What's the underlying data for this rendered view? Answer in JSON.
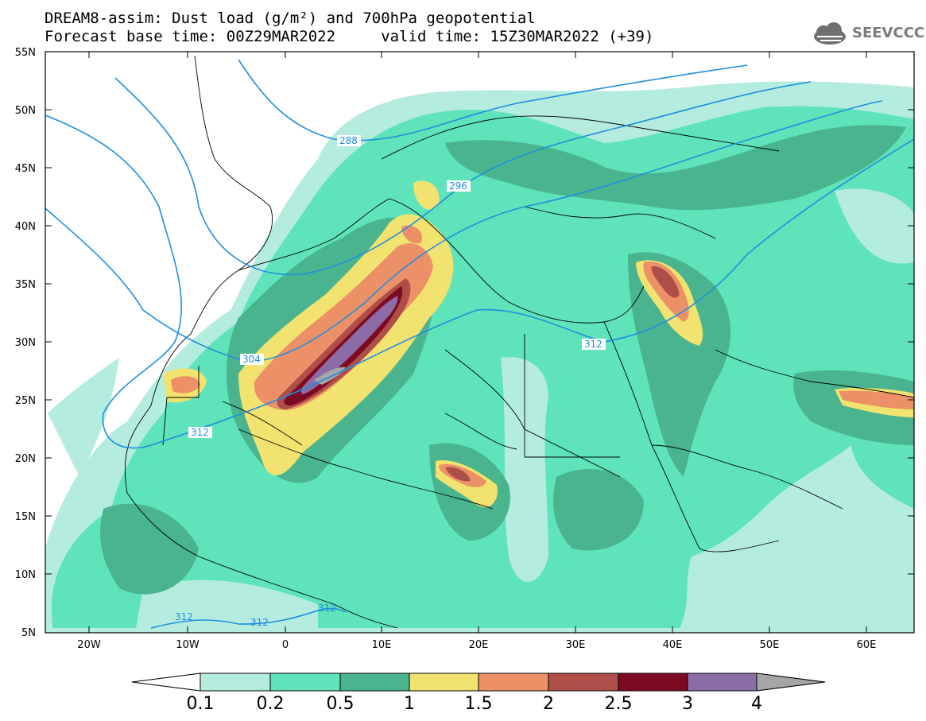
{
  "header": {
    "title_line1": "DREAM8-assim: Dust load (g/m²) and 700hPa geopotential",
    "title_line2": "Forecast base time: 00Z29MAR2022     valid time: 15Z30MAR2022 (+39)"
  },
  "logo": {
    "text": "SEEVCCC",
    "icon": "cloud-icon"
  },
  "map": {
    "lon_labels": [
      "20W",
      "10W",
      "0",
      "10E",
      "20E",
      "30E",
      "40E",
      "50E",
      "60E"
    ],
    "lat_labels": [
      "55N",
      "50N",
      "45N",
      "40N",
      "35N",
      "30N",
      "25N",
      "20N",
      "15N",
      "10N",
      "5N"
    ],
    "contour_labels": [
      "288",
      "296",
      "304",
      "312",
      "312",
      "312",
      "312",
      "312"
    ],
    "contour_color": "#1f8ee0"
  },
  "colorbar": {
    "tick_labels": [
      "0.1",
      "0.2",
      "0.5",
      "1",
      "1.5",
      "2",
      "2.5",
      "3",
      "4"
    ],
    "colors": [
      "#ffffff",
      "#b5ece0",
      "#5ee3ba",
      "#49b48d",
      "#f2e370",
      "#ec9167",
      "#ad4f48",
      "#7e0a22",
      "#8c6ca6",
      "#a6a6a6"
    ]
  }
}
